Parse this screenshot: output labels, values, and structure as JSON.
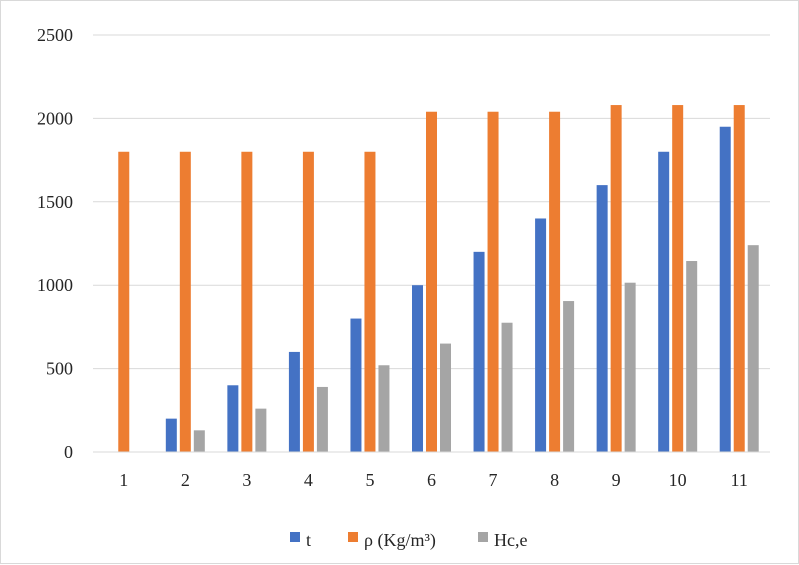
{
  "chart_data": {
    "type": "bar",
    "categories": [
      "1",
      "2",
      "3",
      "4",
      "5",
      "6",
      "7",
      "8",
      "9",
      "10",
      "11"
    ],
    "series": [
      {
        "name": "t",
        "color": "#4472c4",
        "values": [
          0,
          200,
          400,
          600,
          800,
          1000,
          1200,
          1400,
          1600,
          1800,
          1950
        ]
      },
      {
        "name": "ρ (Kg/m³)",
        "color": "#ed7d31",
        "values": [
          1800,
          1800,
          1800,
          1800,
          1800,
          2040,
          2040,
          2040,
          2080,
          2080,
          2080
        ]
      },
      {
        "name": "Hc,e",
        "color": "#a5a5a5",
        "values": [
          0,
          130,
          260,
          390,
          520,
          650,
          775,
          905,
          1015,
          1145,
          1240
        ]
      }
    ],
    "yticks": [
      "0",
      "500",
      "1000",
      "1500",
      "2000",
      "2500"
    ],
    "ylim": [
      0,
      2500
    ],
    "grid": true,
    "legend_position": "bottom"
  }
}
